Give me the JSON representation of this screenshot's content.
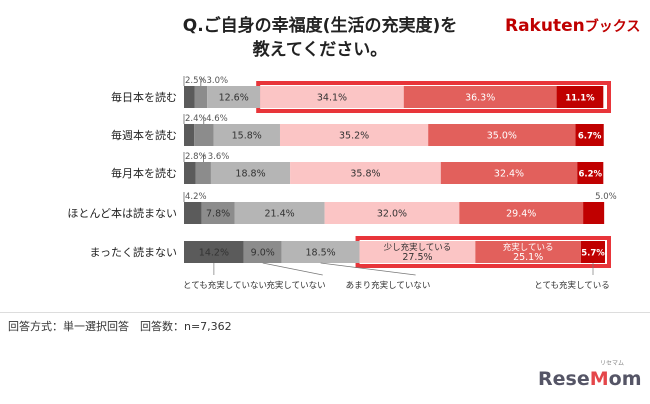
{
  "title_line1": "Q.ご自身の幸福度(生活の充実度)を",
  "title_line2": "教えてください。",
  "logo_brand": "Rakuten",
  "logo_suffix": "ブックス",
  "footnote": "回答方式：単一選択回答　回答数：n=7,362",
  "watermark": "ReseMom",
  "watermark_sub": "リセマム",
  "colors": [
    "#5b5b5b",
    "#8c8c8c",
    "#b5b5b5",
    "#fbc5c5",
    "#e2605c",
    "#c00000"
  ],
  "highlight_color": "#e8353a",
  "chart_data": {
    "type": "bar",
    "orientation": "horizontal-stacked-100",
    "categories": [
      "毎日本を読む",
      "毎週本を読む",
      "毎月本を読む",
      "ほとんど本は読まない",
      "まったく読まない"
    ],
    "series": [
      {
        "name": "とても充実していない",
        "values": [
          2.5,
          2.4,
          2.8,
          4.2,
          14.2
        ]
      },
      {
        "name": "充実していない",
        "values": [
          3.0,
          4.6,
          3.6,
          7.8,
          9.0
        ]
      },
      {
        "name": "あまり充実していない",
        "values": [
          12.6,
          15.8,
          18.8,
          21.4,
          18.5
        ]
      },
      {
        "name": "少し充実している",
        "values": [
          34.1,
          35.2,
          35.8,
          32.0,
          27.5
        ]
      },
      {
        "name": "充実している",
        "values": [
          36.3,
          35.0,
          32.4,
          29.4,
          25.1
        ]
      },
      {
        "name": "とても充実している",
        "values": [
          11.1,
          6.7,
          6.2,
          5.0,
          5.7
        ]
      }
    ],
    "highlighted_rows": [
      "毎日本を読む",
      "まったく読まない"
    ],
    "xlim": [
      0,
      100
    ],
    "legend_placement": "bottom"
  }
}
